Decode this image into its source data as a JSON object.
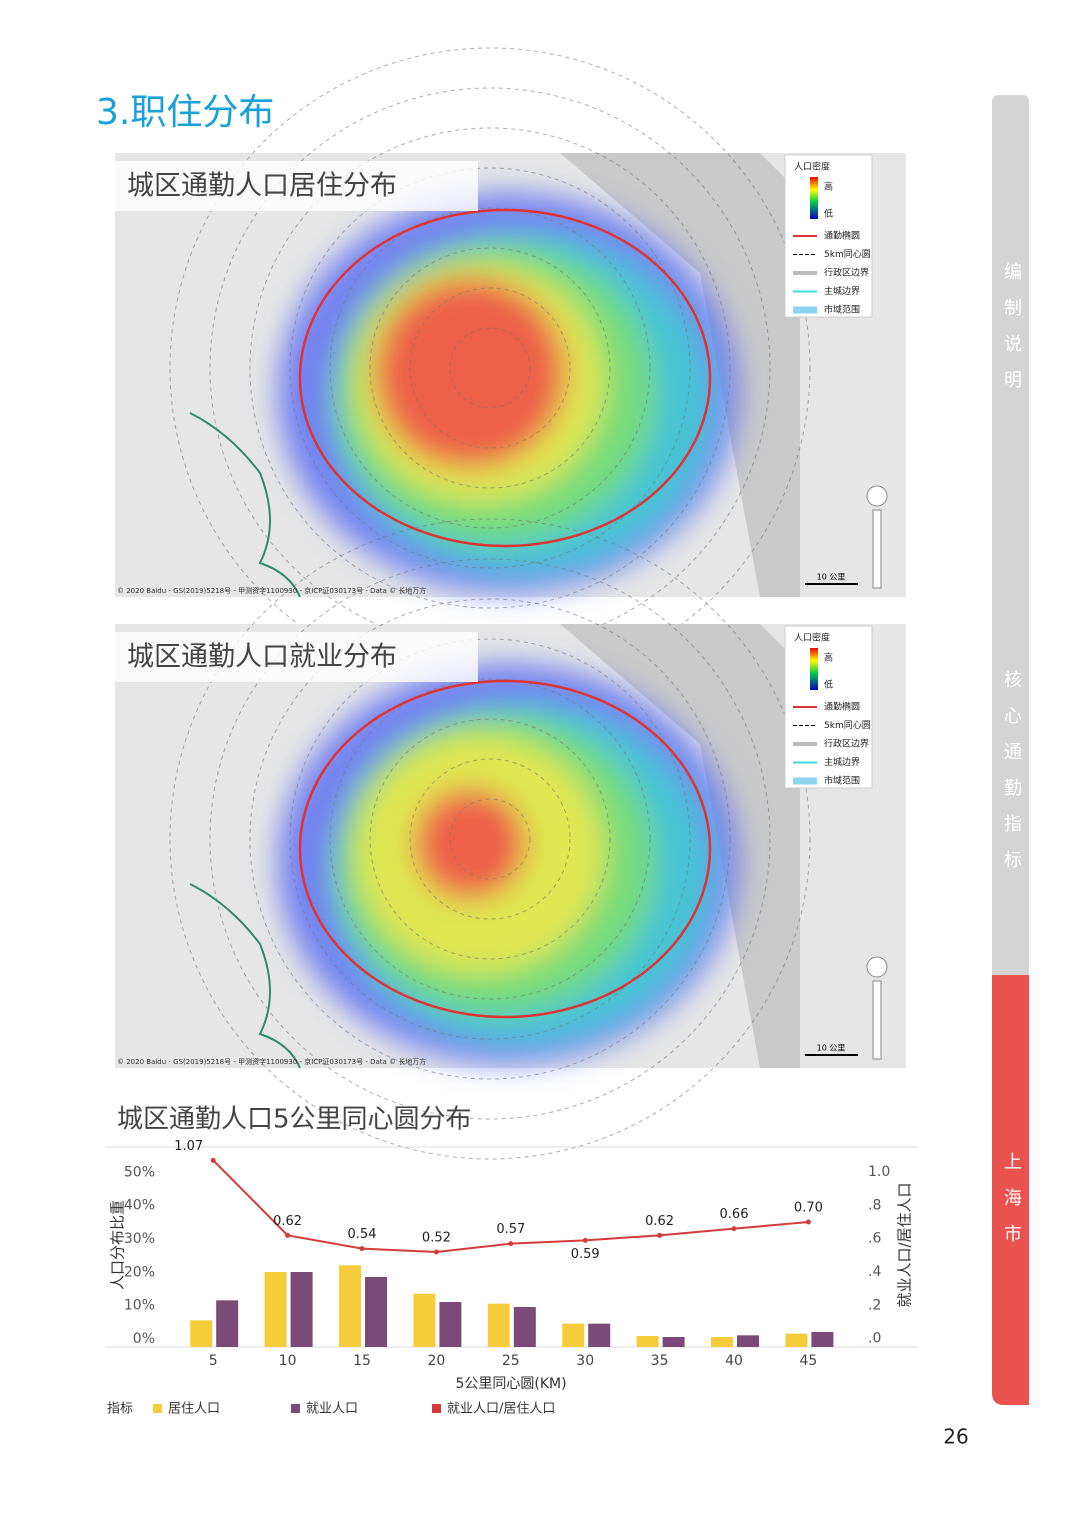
{
  "header": {
    "title": "3.职住分布"
  },
  "side_tabs": [
    "编制说明",
    "核心通勤指标",
    "上海市"
  ],
  "maps": [
    {
      "title": "城区通勤人口居住分布"
    },
    {
      "title": "城区通勤人口就业分布"
    }
  ],
  "map_legend": {
    "title": "人口密度",
    "high": "高",
    "low": "低",
    "items": [
      "通勤椭圆",
      "5km同心圆",
      "行政区边界",
      "主城边界",
      "市域范围"
    ],
    "scale": "10 公里",
    "copyright": "© 2020 Baidu - GS(2019)5218号 - 甲测资字1100930 - 京ICP证030173号 - Data © 长地万方"
  },
  "chart_data": {
    "type": "bar",
    "title": "城区通勤人口5公里同心圆分布",
    "x_label": "5公里同心圆(KM)",
    "y_label": "人口分布比重",
    "y2_label": "就业人口/居住人口",
    "legend_title": "指标",
    "categories": [
      "5",
      "10",
      "15",
      "20",
      "25",
      "30",
      "35",
      "40",
      "45"
    ],
    "series": [
      {
        "name": "居住人口",
        "color": "#f5cd3a",
        "values": [
          8,
          22.5,
          24.5,
          16,
          13,
          7,
          3.3,
          3,
          4
        ]
      },
      {
        "name": "就业人口",
        "color": "#7b4a78",
        "values": [
          14,
          22.5,
          21,
          13.5,
          12,
          7,
          3,
          3.5,
          4.5
        ]
      },
      {
        "name": "就业人口/居住人口",
        "type": "line",
        "axis": "y2",
        "color": "#d63b3b",
        "values": [
          1.07,
          0.62,
          0.54,
          0.52,
          0.57,
          0.59,
          0.62,
          0.66,
          0.7
        ],
        "value_labels": [
          "1.07",
          "0.62",
          "0.54",
          "0.52",
          "0.57",
          "0.59",
          "0.62",
          "0.66",
          "0.70"
        ]
      }
    ],
    "ylim": [
      0,
      60
    ],
    "yticks": [
      {
        "value": 0,
        "label": "0%"
      },
      {
        "value": 10,
        "label": "10%"
      },
      {
        "value": 20,
        "label": "20%"
      },
      {
        "value": 30,
        "label": "30%"
      },
      {
        "value": 40,
        "label": "40%"
      },
      {
        "value": 50,
        "label": "50%"
      }
    ],
    "y2lim": [
      -0.05,
      1.15
    ],
    "y2ticks": [
      {
        "value": 0,
        "label": ".0"
      },
      {
        "value": 0.2,
        "label": ".2"
      },
      {
        "value": 0.4,
        "label": ".4"
      },
      {
        "value": 0.6,
        "label": ".6"
      },
      {
        "value": 0.8,
        "label": ".8"
      },
      {
        "value": 1.0,
        "label": "1.0"
      }
    ]
  },
  "page_number": "26"
}
